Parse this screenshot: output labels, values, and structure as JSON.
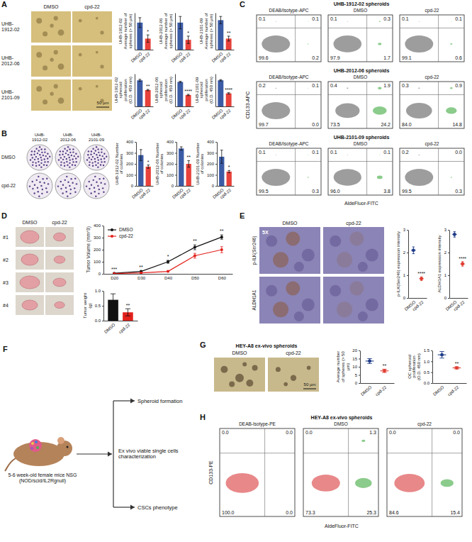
{
  "panel_letters": [
    "A",
    "B",
    "C",
    "D",
    "E",
    "F",
    "G",
    "H"
  ],
  "images": {
    "A": {
      "columns": [
        "DMSO",
        "cpd-22"
      ],
      "rows": [
        "UHB-1912-02",
        "UHB-2012-06",
        "UHB-2101-09"
      ],
      "scale_bar": "50 µm"
    },
    "B": {
      "columns": [
        "UHB-1912-02",
        "UHB-2012-06",
        "UHB-2101-09"
      ],
      "rows": [
        "DMSO",
        "cpd-22"
      ]
    },
    "D": {
      "columns": [
        "DMSO",
        "cpd-22"
      ],
      "rows": [
        "#1",
        "#2",
        "#3",
        "#4"
      ]
    },
    "E": {
      "columns": [
        "DMSO",
        "cpd-22"
      ],
      "rows": [
        "p-ILK(Ser246)",
        "ALDH1A1"
      ],
      "magnification": "5X"
    },
    "G": {
      "title": "HEY-A8 ex-vivo spheroids",
      "columns": [
        "DMSO",
        "cpd-22"
      ],
      "scale_bar": "50 µm"
    }
  },
  "diagram": {
    "mice": "5-6 week-old female mice NSG (NOD/scid/IL2Rgnull)",
    "step": "Ex vivo viable single cells characterization",
    "outputs": [
      "Spheroid formation",
      "CSCs phenotype"
    ]
  },
  "chart_data": [
    {
      "type": "bar",
      "y_label": "UHB-1912-02 Average number of spheres (> 50 µm)",
      "categories": [
        "DMSO",
        "cpd-22"
      ],
      "values": [
        11,
        4.5
      ],
      "errors": [
        2,
        1.5
      ],
      "colors": [
        "#3b5ba5",
        "#e8413b"
      ],
      "ylim": [
        0,
        15
      ],
      "tick_labels": "x",
      "annotations": [
        "*"
      ]
    },
    {
      "type": "bar",
      "y_label": "UHB-2012-06 Average number of spheres (> 50 µm)",
      "categories": [
        "DMSO",
        "cpd-22"
      ],
      "values": [
        11,
        4
      ],
      "errors": [
        2.5,
        1.5
      ],
      "colors": [
        "#3b5ba5",
        "#e8413b"
      ],
      "ylim": [
        0,
        15
      ],
      "tick_labels": "x",
      "annotations": [
        "*"
      ]
    },
    {
      "type": "bar",
      "y_label": "UHB-2101-09 Average number of spheres (> 50 µm)",
      "categories": [
        "DMSO",
        "cpd-22"
      ],
      "values": [
        12,
        4.5
      ],
      "errors": [
        1.5,
        1
      ],
      "colors": [
        "#3b5ba5",
        "#e8413b"
      ],
      "ylim": [
        0,
        15
      ],
      "tick_labels": "x",
      "annotations": [
        "**"
      ]
    },
    {
      "type": "bar",
      "y_label": "UHB-1912-02 spheroid proliferation (O.D. 450 nm)",
      "categories": [
        "DMSO",
        "cpd-22"
      ],
      "values": [
        0.8,
        0.5
      ],
      "errors": [
        0.03,
        0.02
      ],
      "colors": [
        "#3b5ba5",
        "#e8413b"
      ],
      "ylim": [
        0,
        1
      ],
      "tick_labels": "x",
      "annotations": [
        "**"
      ]
    },
    {
      "type": "bar",
      "y_label": "UHB-2012-06 spheroid proliferation (O.D. 450 nm)",
      "categories": [
        "DMSO",
        "cpd-22"
      ],
      "values": [
        0.75,
        0.35
      ],
      "errors": [
        0.02,
        0.02
      ],
      "colors": [
        "#3b5ba5",
        "#e8413b"
      ],
      "ylim": [
        0,
        1
      ],
      "tick_labels": "x",
      "annotations": [
        "****"
      ]
    },
    {
      "type": "bar",
      "y_label": "UHB-2101-09 spheroid proliferation (O.D. 450 nm)",
      "categories": [
        "DMSO",
        "cpd-22"
      ],
      "values": [
        0.8,
        0.4
      ],
      "errors": [
        0.02,
        0.02
      ],
      "colors": [
        "#3b5ba5",
        "#e8413b"
      ],
      "ylim": [
        0,
        1
      ],
      "tick_labels": "x",
      "annotations": [
        "****"
      ]
    },
    {
      "type": "bar",
      "y_label": "UHB-1912-02 Number of colonies",
      "categories": [
        "DMSO",
        "cpd-22"
      ],
      "values": [
        280,
        175
      ],
      "errors": [
        50,
        15
      ],
      "colors": [
        "#3b5ba5",
        "#e8413b"
      ],
      "ylim": [
        0,
        400
      ],
      "yticks": [
        0,
        100,
        200,
        300,
        400
      ],
      "annotations": [
        "*"
      ]
    },
    {
      "type": "bar",
      "y_label": "UHB-2012-06 Number of colonies",
      "categories": [
        "DMSO",
        "cpd-22"
      ],
      "values": [
        340,
        200
      ],
      "errors": [
        15,
        30
      ],
      "colors": [
        "#3b5ba5",
        "#e8413b"
      ],
      "ylim": [
        0,
        400
      ],
      "yticks": [
        0,
        100,
        200,
        300,
        400
      ],
      "annotations": [
        "**"
      ]
    },
    {
      "type": "bar",
      "y_label": "UHB-2101-09 Number of colonies",
      "categories": [
        "DMSO",
        "cpd-22"
      ],
      "values": [
        265,
        130
      ],
      "errors": [
        60,
        10
      ],
      "colors": [
        "#3b5ba5",
        "#e8413b"
      ],
      "ylim": [
        0,
        400
      ],
      "yticks": [
        0,
        100,
        200,
        300,
        400
      ],
      "annotations": [
        "*"
      ]
    },
    {
      "type": "flow",
      "x_label": "AldeFluor-FITC",
      "y_label": "CD133-APC",
      "colors": [
        "#4d4d4d",
        "#2ca02c"
      ],
      "rows": [
        {
          "title": "UHB-1912-02 spheroids",
          "plots": [
            {
              "title": "DEAB/Isotype-APC",
              "values": [
                0.1,
                0.1,
                99.6,
                0.2
              ],
              "value_labels": [
                "0.1",
                "0.1",
                "99.6",
                "0.2"
              ]
            },
            {
              "title": "DMSO",
              "values": [
                0.1,
                0.3,
                97.9,
                1.7
              ],
              "value_labels": [
                "0.1",
                "0.3",
                "97.9",
                "1.7"
              ]
            },
            {
              "title": "cpd-22",
              "values": [
                0.1,
                0.1,
                99.1,
                0.6
              ],
              "value_labels": [
                "0.1",
                "0.1",
                "99.1",
                "0.6"
              ]
            }
          ]
        },
        {
          "title": "UHB-2012-06 spheroids",
          "plots": [
            {
              "title": "DEAB/Isotype-APC",
              "values": [
                0.2,
                0.1,
                99.7,
                0
              ],
              "value_labels": [
                "0.2",
                "0.1",
                "99.7",
                "0.0"
              ]
            },
            {
              "title": "DMSO",
              "values": [
                0.4,
                1.9,
                73.5,
                24.2
              ],
              "value_labels": [
                "0.4",
                "1.9",
                "73.5",
                "24.2"
              ]
            },
            {
              "title": "cpd-22",
              "values": [
                0.3,
                0.9,
                84,
                14.8
              ],
              "value_labels": [
                "0.3",
                "0.9",
                "84.0",
                "14.8"
              ]
            }
          ]
        },
        {
          "title": "UHB-2101-09 spheroids",
          "plots": [
            {
              "title": "DEAB/Isotype-APC",
              "values": [
                0.1,
                0.1,
                99.5,
                0.3
              ],
              "value_labels": [
                "0.1",
                "0.1",
                "99.5",
                "0.3"
              ]
            },
            {
              "title": "DMSO",
              "values": [
                0.1,
                0.1,
                96,
                3.8
              ],
              "value_labels": [
                "0.1",
                "0.1",
                "96.0",
                "3.8"
              ]
            },
            {
              "title": "cpd-22",
              "values": [
                0.2,
                0,
                99.5,
                0.3
              ],
              "value_labels": [
                "0.2",
                "0.0",
                "99.5",
                "0.3"
              ]
            }
          ]
        }
      ]
    },
    {
      "type": "line",
      "y_label": "Tumor Volume (mm^3)",
      "categories": [
        "D20",
        "D30",
        "D40",
        "D50",
        "D60"
      ],
      "series": [
        {
          "name": "DMSO",
          "color": "#111111",
          "values": [
            5,
            20,
            100,
            220,
            305
          ],
          "errors": [
            2,
            4,
            12,
            20,
            18
          ]
        },
        {
          "name": "cpd-22",
          "color": "#e3211c",
          "values": [
            2,
            8,
            20,
            150,
            200
          ],
          "errors": [
            1,
            2,
            5,
            20,
            25
          ]
        }
      ],
      "ylim": [
        0,
        400
      ],
      "yticks": [
        0,
        100,
        200,
        300,
        400
      ],
      "legend": "top-left",
      "marker": "circle",
      "annotations": [
        "***",
        "**",
        "*",
        "**",
        "**"
      ]
    },
    {
      "type": "bar",
      "y_label": "Tumor weight (g)",
      "categories": [
        "DMSO",
        "cpd-22"
      ],
      "values": [
        0.7,
        0.28
      ],
      "errors": [
        0.2,
        0.12
      ],
      "colors": [
        "#111111",
        "#e3211c"
      ],
      "ylim": [
        0,
        1
      ],
      "yticks": [
        {
          "value": 0,
          "label": "0.0"
        },
        {
          "value": 0.5,
          "label": "0.5"
        },
        {
          "value": 1,
          "label": "1.0"
        }
      ],
      "annotations": [
        "**"
      ]
    },
    {
      "type": "dot",
      "y_label": "p-ILK(Ser246) expression intensity",
      "categories": [
        "DMSO",
        "cpd-22"
      ],
      "values": [
        2.1,
        0.85
      ],
      "errors": [
        0.15,
        0.08
      ],
      "colors": [
        "#1f3c88",
        "#e03c31"
      ],
      "ylim": [
        0,
        3
      ],
      "yticks": [
        0,
        1,
        2,
        3
      ],
      "annotations": [
        "****"
      ]
    },
    {
      "type": "dot",
      "y_label": "ALDH1A1 expression intensity",
      "categories": [
        "DMSO",
        "cpd-22"
      ],
      "values": [
        2.8,
        1.5
      ],
      "errors": [
        0.12,
        0.1
      ],
      "colors": [
        "#1f3c88",
        "#e03c31"
      ],
      "ylim": [
        0,
        3
      ],
      "yticks": [
        0,
        1,
        2,
        3
      ],
      "annotations": [
        "****"
      ]
    },
    {
      "type": "dot",
      "y_label": "Average number of spheres (> 50 µm)",
      "categories": [
        "DMSO",
        "cpd-22"
      ],
      "values": [
        13.5,
        7.5
      ],
      "errors": [
        1.5,
        1
      ],
      "colors": [
        "#1f3c88",
        "#e03c31"
      ],
      "ylim": [
        0,
        20
      ],
      "yticks": [
        0,
        5,
        10,
        15,
        20
      ],
      "annotations": [
        "**"
      ]
    },
    {
      "type": "dot",
      "y_label": "OC spheroid proliferation (O.D. 450 nm)",
      "categories": [
        "DMSO",
        "cpd-22"
      ],
      "values": [
        1.3,
        0.7
      ],
      "errors": [
        0.15,
        0.05
      ],
      "colors": [
        "#1f3c88",
        "#e03c31"
      ],
      "ylim": [
        0,
        1.5
      ],
      "yticks": [
        {
          "value": 0,
          "label": "0.0"
        },
        {
          "value": 0.5,
          "label": "0.5"
        },
        {
          "value": 1,
          "label": "1.0"
        },
        {
          "value": 1.5,
          "label": "1.5"
        }
      ],
      "annotations": [
        "**"
      ]
    },
    {
      "type": "flow",
      "x_label": "AldeFluor-FITC",
      "y_label": "CD133-PE",
      "colors": [
        "#d62728",
        "#2ca02c"
      ],
      "rows": [
        {
          "title": "HEY-A8 ex-vivo spheroids",
          "plots": [
            {
              "title": "DEAB-Isotype-PE",
              "values": [
                0,
                0,
                100,
                0
              ],
              "value_labels": [
                "0.0",
                "0.0",
                "100.0",
                "0.0"
              ]
            },
            {
              "title": "DMSO",
              "values": [
                0,
                1.3,
                73.3,
                25.3
              ],
              "value_labels": [
                "0.0",
                "1.3",
                "73.3",
                "25.3"
              ]
            },
            {
              "title": "cpd-22",
              "values": [
                0,
                0,
                84.6,
                15.4
              ],
              "value_labels": [
                "0.0",
                "0.0",
                "84.6",
                "15.4"
              ]
            }
          ]
        }
      ]
    }
  ]
}
